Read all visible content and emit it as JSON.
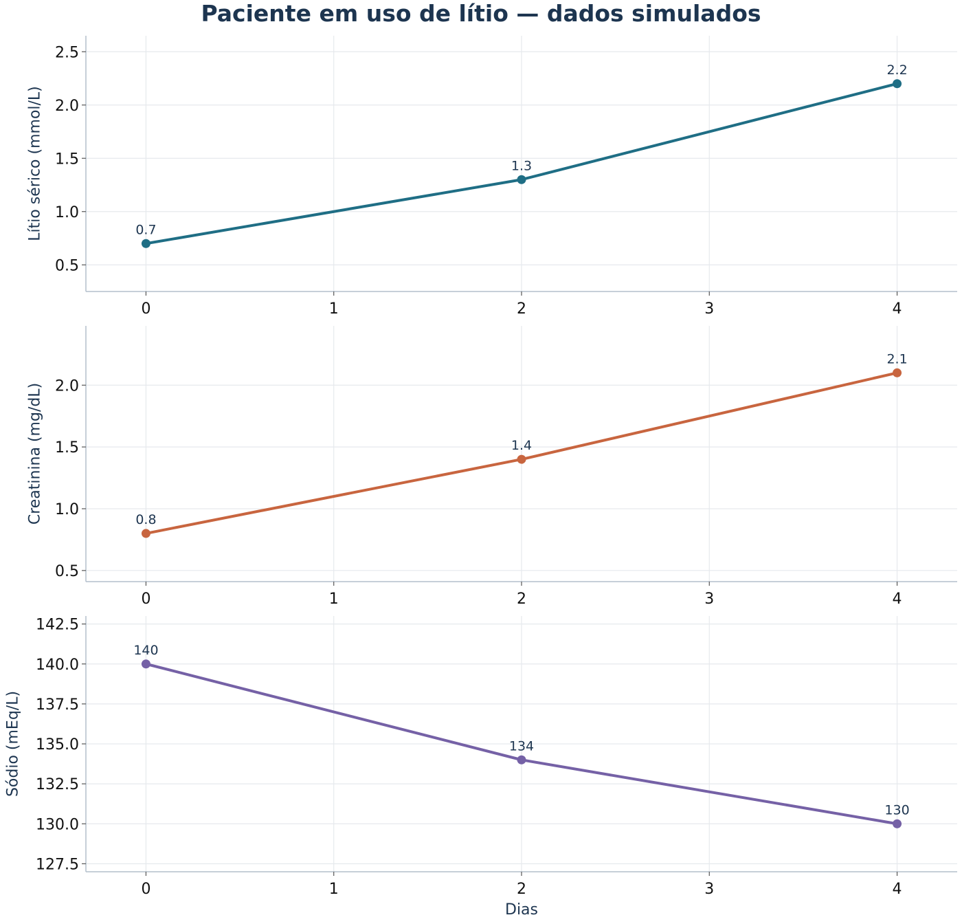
{
  "title": "Paciente em uso de lítio — dados simulados",
  "xlabel": "Dias",
  "chart_data": [
    {
      "type": "line",
      "ylabel": "Lítio sérico (mmol/L)",
      "color": "#1f6e85",
      "x": [
        0,
        2,
        4
      ],
      "values": [
        0.7,
        1.3,
        2.2
      ],
      "point_labels": [
        "0.7",
        "1.3",
        "2.2"
      ],
      "xlim": [
        -0.32,
        4.32
      ],
      "ylim": [
        0.25,
        2.65
      ],
      "xticks": [
        0,
        1,
        2,
        3,
        4
      ],
      "xtick_labels": [
        "0",
        "1",
        "2",
        "3",
        "4"
      ],
      "yticks": [
        0.5,
        1.0,
        1.5,
        2.0,
        2.5
      ],
      "ytick_labels": [
        "0.5",
        "1.0",
        "1.5",
        "2.0",
        "2.5"
      ],
      "grid": true
    },
    {
      "type": "line",
      "ylabel": "Creatinina (mg/dL)",
      "color": "#c8653f",
      "x": [
        0,
        2,
        4
      ],
      "values": [
        0.8,
        1.4,
        2.1
      ],
      "point_labels": [
        "0.8",
        "1.4",
        "2.1"
      ],
      "xlim": [
        -0.32,
        4.32
      ],
      "ylim": [
        0.41,
        2.48
      ],
      "xticks": [
        0,
        1,
        2,
        3,
        4
      ],
      "xtick_labels": [
        "0",
        "1",
        "2",
        "3",
        "4"
      ],
      "yticks": [
        0.5,
        1.0,
        1.5,
        2.0
      ],
      "ytick_labels": [
        "0.5",
        "1.0",
        "1.5",
        "2.0"
      ],
      "grid": true
    },
    {
      "type": "line",
      "ylabel": "Sódio (mEq/L)",
      "color": "#7561a6",
      "x": [
        0,
        2,
        4
      ],
      "values": [
        140,
        134,
        130
      ],
      "point_labels": [
        "140",
        "134",
        "130"
      ],
      "xlim": [
        -0.32,
        4.32
      ],
      "ylim": [
        127.0,
        143.0
      ],
      "xticks": [
        0,
        1,
        2,
        3,
        4
      ],
      "xtick_labels": [
        "0",
        "1",
        "2",
        "3",
        "4"
      ],
      "yticks": [
        127.5,
        130.0,
        132.5,
        135.0,
        137.5,
        140.0,
        142.5
      ],
      "ytick_labels": [
        "127.5",
        "130.0",
        "132.5",
        "135.0",
        "137.5",
        "140.0",
        "142.5"
      ],
      "grid": true
    }
  ]
}
